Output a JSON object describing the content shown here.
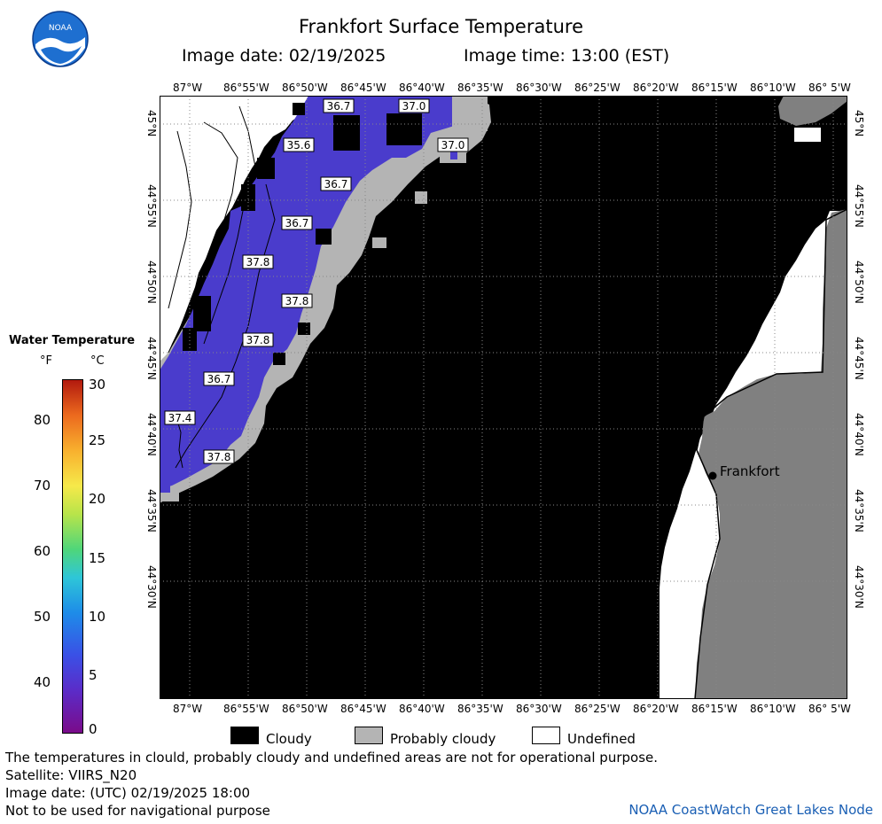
{
  "header": {
    "title": "Frankfort Surface Temperature",
    "image_date": "Image date: 02/19/2025",
    "image_time": "Image time: 13:00 (EST)"
  },
  "map": {
    "lon_labels": [
      "87°W",
      "86°55'W",
      "86°50'W",
      "86°45'W",
      "86°40'W",
      "86°35'W",
      "86°30'W",
      "86°25'W",
      "86°20'W",
      "86°15'W",
      "86°10'W",
      "86° 5'W"
    ],
    "lat_labels": [
      "45°N",
      "44°55'N",
      "44°50'N",
      "44°45'N",
      "44°40'N",
      "44°35'N",
      "44°30'N"
    ],
    "temp_labels": [
      "36.7",
      "37.0",
      "35.6",
      "37.0",
      "36.7",
      "36.7",
      "37.8",
      "37.8",
      "37.8",
      "36.7",
      "37.4",
      "37.8"
    ],
    "place_label": "Frankfort",
    "colors": {
      "cloud": "#000000",
      "land": "#808080",
      "probably_cloudy": "#b4b4b4",
      "undefined": "#ffffff",
      "water_cold": "#4a3ccc"
    }
  },
  "legend": {
    "title": "Water Temperature",
    "unit_f": "°F",
    "unit_c": "°C",
    "f_labels": [
      "80",
      "70",
      "60",
      "50",
      "40"
    ],
    "c_labels": [
      "30",
      "25",
      "20",
      "15",
      "10",
      "5",
      "0"
    ]
  },
  "key": {
    "cloudy": "Cloudy",
    "probably_cloudy": "Probably cloudy",
    "undefined": "Undefined"
  },
  "footer": {
    "disclaimer": "The temperatures in clould, probably cloudy and undefined areas are not for operational purpose.",
    "satellite": "Satellite: VIIRS_N20",
    "utc_date": "Image date: (UTC) 02/19/2025  18:00",
    "nav": "Not to be used for navigational purpose",
    "credit": "NOAA CoastWatch Great Lakes Node"
  }
}
